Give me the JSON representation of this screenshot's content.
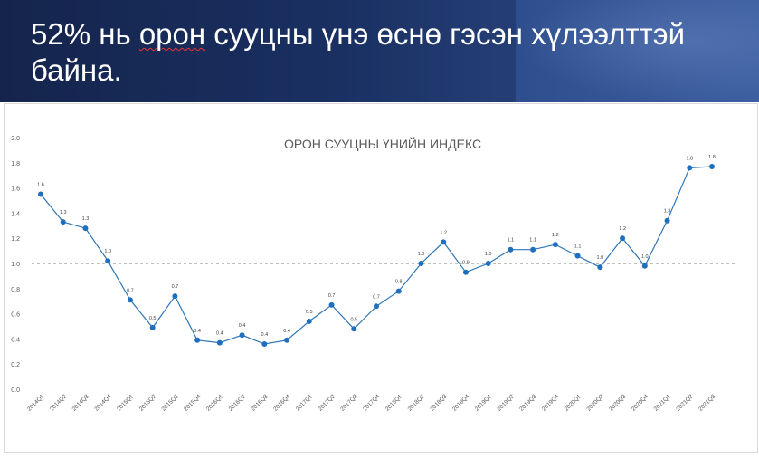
{
  "header": {
    "title_pre": "52% нь ",
    "title_underlined": "орон",
    "title_post": " сууцны үнэ өснө гэсэн хүлээлттэй байна."
  },
  "chart_data": {
    "type": "line",
    "title": "ОРОН СУУЦНЫ ҮНИЙН ИНДЕКС",
    "xlabel": "",
    "ylabel": "",
    "ylim": [
      0,
      2.0
    ],
    "yticks": [
      "0.0",
      "0.2",
      "0.4",
      "0.6",
      "0.8",
      "1.0",
      "1.2",
      "1.4",
      "1.6",
      "1.8",
      "2.0"
    ],
    "reference_line": 1.0,
    "grid": false,
    "legend": "none",
    "categories": [
      "2014Q1",
      "2014Q2",
      "2014Q3",
      "2014Q4",
      "2015Q1",
      "2015Q2",
      "2015Q3",
      "2015Q4",
      "2016Q1",
      "2016Q2",
      "2016Q3",
      "2016Q4",
      "2017Q1",
      "2017Q2",
      "2017Q3",
      "2017Q4",
      "2018Q1",
      "2018Q2",
      "2018Q3",
      "2018Q4",
      "2019Q1",
      "2019Q2",
      "2019Q3",
      "2019Q4",
      "2020Q1",
      "2020Q2",
      "2020Q3",
      "2020Q4",
      "2021Q1",
      "2021Q2",
      "2021Q3"
    ],
    "values": [
      1.55,
      1.33,
      1.28,
      1.02,
      0.71,
      0.49,
      0.74,
      0.39,
      0.37,
      0.43,
      0.36,
      0.39,
      0.54,
      0.67,
      0.48,
      0.66,
      0.78,
      1.0,
      1.17,
      0.93,
      1.0,
      1.11,
      1.11,
      1.15,
      1.06,
      0.97,
      1.2,
      0.98,
      1.34,
      1.76,
      1.77
    ],
    "data_labels": [
      "1.6",
      "1.3",
      "1.3",
      "1.0",
      "0.7",
      "0.5",
      "0.7",
      "0.4",
      "0.4",
      "0.4",
      "0.4",
      "0.4",
      "0.5",
      "0.7",
      "0.5",
      "0.7",
      "0.8",
      "1.0",
      "1.2",
      "0.9",
      "1.0",
      "1.1",
      "1.1",
      "1.2",
      "1.1",
      "1.0",
      "1.2",
      "1.0",
      "1.3",
      "1.8",
      "1.8"
    ],
    "colors": {
      "line": "#2e75b6",
      "marker": "#1f6fbf",
      "reference": "#7f7f7f",
      "axis_text": "#595959"
    }
  }
}
